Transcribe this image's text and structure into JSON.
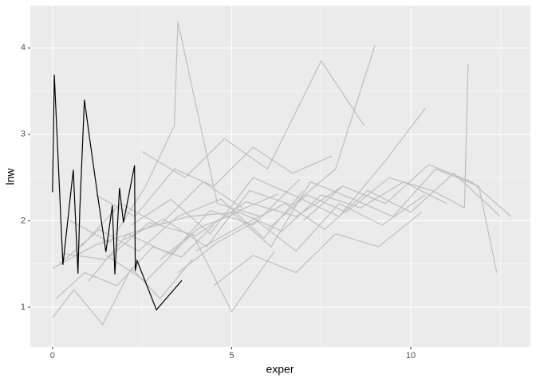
{
  "chart_data": {
    "type": "line",
    "x_label": "exper",
    "y_label": "lnw",
    "xlim": [
      -0.62,
      13.34
    ],
    "ylim": [
      0.54,
      4.49
    ],
    "xticks": [
      0,
      5,
      10
    ],
    "yticks": [
      1,
      2,
      3,
      4
    ],
    "x_minor_ticks": [
      2.5,
      7.5,
      12.5
    ],
    "y_minor_ticks": [
      1.5,
      2.5,
      3.5
    ],
    "grid": true,
    "panel_color": "#ebebeb",
    "series": [
      {
        "color": "#bebebe",
        "x": [
          0.0,
          1.2,
          2.5,
          3.8,
          5.1,
          6.3
        ],
        "values": [
          1.45,
          1.72,
          1.9,
          2.05,
          2.1,
          2.31
        ]
      },
      {
        "color": "#bebebe",
        "x": [
          0.3,
          1.5,
          2.7,
          4.0,
          5.4,
          6.8,
          8.1
        ],
        "values": [
          1.62,
          1.55,
          1.98,
          1.83,
          2.22,
          2.05,
          2.4
        ]
      },
      {
        "color": "#bebebe",
        "x": [
          1.0,
          2.1,
          3.3,
          4.4,
          5.6,
          6.9
        ],
        "values": [
          1.3,
          1.85,
          1.61,
          2.12,
          1.95,
          2.48
        ]
      },
      {
        "color": "#bebebe",
        "x": [
          2.0,
          3.1,
          4.3,
          5.5,
          6.7,
          7.9,
          9.0
        ],
        "values": [
          1.78,
          2.02,
          1.7,
          2.35,
          2.18,
          2.6,
          4.03
        ]
      },
      {
        "color": "#bebebe",
        "x": [
          3.0,
          4.1,
          5.2,
          6.4,
          7.5,
          8.6,
          9.8,
          11.0
        ],
        "values": [
          1.55,
          1.92,
          2.1,
          1.88,
          2.3,
          2.15,
          2.45,
          2.2
        ]
      },
      {
        "color": "#bebebe",
        "x": [
          0.1,
          0.9,
          1.8,
          2.8,
          3.6,
          4.5
        ],
        "values": [
          1.1,
          1.4,
          1.25,
          1.7,
          1.58,
          1.95
        ]
      },
      {
        "color": "#bebebe",
        "x": [
          0.5,
          1.6,
          2.6,
          3.4,
          3.5,
          4.6,
          5.8
        ],
        "values": [
          2.0,
          1.75,
          2.4,
          3.1,
          4.3,
          2.2,
          2.05
        ]
      },
      {
        "color": "#bebebe",
        "x": [
          4.0,
          5.3,
          6.5,
          7.6,
          8.8,
          10.0,
          11.2,
          12.5
        ],
        "values": [
          1.65,
          1.95,
          2.2,
          1.9,
          2.35,
          2.1,
          2.55,
          2.05
        ]
      },
      {
        "color": "#bebebe",
        "x": [
          5.0,
          6.1,
          7.2,
          8.4,
          9.5,
          10.7,
          11.9,
          12.4
        ],
        "values": [
          2.1,
          1.7,
          2.45,
          2.25,
          2.05,
          2.6,
          2.4,
          1.4
        ]
      },
      {
        "color": "#bebebe",
        "x": [
          1.5,
          2.6,
          3.9,
          5.0,
          6.2
        ],
        "values": [
          1.6,
          1.3,
          1.85,
          0.95,
          1.65
        ]
      },
      {
        "color": "#bebebe",
        "x": [
          2.5,
          3.7,
          4.8,
          6.0,
          7.5,
          8.7
        ],
        "values": [
          2.8,
          2.5,
          2.95,
          2.6,
          3.85,
          3.1
        ]
      },
      {
        "color": "#bebebe",
        "x": [
          0.2,
          1.3,
          2.4,
          3.5,
          4.7,
          5.9,
          7.0
        ],
        "values": [
          1.5,
          1.9,
          1.65,
          2.05,
          2.25,
          1.8,
          2.35
        ]
      },
      {
        "color": "#bebebe",
        "x": [
          6.0,
          7.1,
          8.2,
          9.4,
          10.6,
          11.5,
          11.6
        ],
        "values": [
          1.9,
          2.3,
          2.1,
          2.5,
          2.35,
          2.15,
          3.82
        ]
      },
      {
        "color": "#bebebe",
        "x": [
          3.5,
          4.6,
          5.7,
          6.8,
          8.0,
          9.2,
          10.4
        ],
        "values": [
          1.4,
          1.75,
          2.0,
          1.65,
          2.2,
          1.95,
          2.3
        ]
      },
      {
        "color": "#bebebe",
        "x": [
          0.0,
          0.6,
          1.4,
          2.2,
          3.0,
          3.9
        ],
        "values": [
          0.88,
          1.2,
          0.8,
          1.45,
          1.1,
          1.55
        ]
      },
      {
        "color": "#bebebe",
        "x": [
          7.0,
          8.1,
          9.3,
          10.5,
          11.7,
          12.8
        ],
        "values": [
          2.0,
          2.4,
          2.2,
          2.65,
          2.45,
          2.05
        ]
      },
      {
        "color": "#bebebe",
        "x": [
          1.2,
          2.3,
          3.4,
          4.5,
          5.6,
          6.7,
          7.8
        ],
        "values": [
          2.3,
          2.05,
          2.6,
          2.4,
          2.85,
          2.55,
          2.75
        ]
      },
      {
        "color": "#bebebe",
        "x": [
          4.5,
          5.6,
          6.8,
          7.9,
          9.1,
          10.3
        ],
        "values": [
          1.25,
          1.6,
          1.4,
          1.85,
          1.7,
          2.1
        ]
      },
      {
        "color": "#bebebe",
        "x": [
          0.8,
          1.9,
          3.0,
          4.2,
          5.3
        ],
        "values": [
          1.7,
          2.2,
          1.95,
          2.45,
          2.15
        ]
      },
      {
        "color": "#bebebe",
        "x": [
          2.2,
          3.3,
          4.4,
          5.6,
          6.7,
          8.0,
          9.3,
          10.4
        ],
        "values": [
          1.95,
          2.25,
          1.85,
          2.5,
          2.3,
          2.05,
          2.7,
          3.3
        ]
      },
      {
        "color": "#000000",
        "x": [
          0.0,
          0.05,
          0.29,
          0.58,
          0.71,
          0.76,
          0.89,
          1.05,
          1.25,
          1.49,
          1.67,
          1.74,
          1.87,
          1.98,
          2.29,
          2.31,
          2.36,
          2.9,
          3.61
        ],
        "values": [
          2.33,
          3.69,
          1.49,
          2.59,
          1.39,
          2.11,
          3.4,
          2.91,
          2.32,
          1.64,
          2.18,
          1.38,
          2.38,
          1.98,
          2.64,
          1.42,
          1.54,
          0.97,
          1.31
        ]
      }
    ]
  }
}
